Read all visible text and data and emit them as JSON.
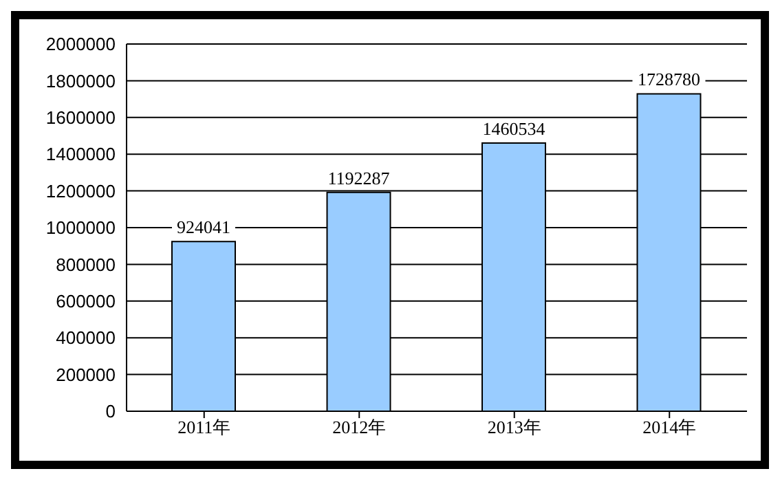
{
  "chart_data": {
    "type": "bar",
    "categories": [
      "2011年",
      "2012年",
      "2013年",
      "2014年"
    ],
    "values": [
      924041,
      1192287,
      1460534,
      1728780
    ],
    "color": "#99ccff",
    "ylim": [
      0,
      2000000
    ],
    "yticks": [
      0,
      200000,
      400000,
      600000,
      800000,
      1000000,
      1200000,
      1400000,
      1600000,
      1800000,
      2000000
    ],
    "grid": "y",
    "data_labels": true,
    "legend": false
  }
}
